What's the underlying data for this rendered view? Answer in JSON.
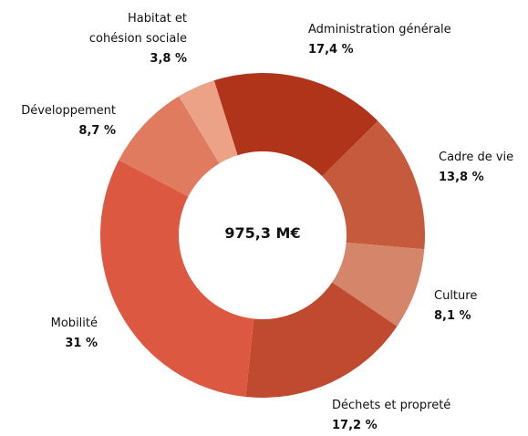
{
  "chart_data": {
    "type": "donut",
    "center_label": "975,3 M€",
    "categories": [
      "Administration générale",
      "Cadre de vie",
      "Culture",
      "Déchets et propreté",
      "Mobilité",
      "Développement",
      "Habitat et cohésion sociale"
    ],
    "values": [
      17.4,
      13.8,
      8.1,
      17.2,
      31,
      8.7,
      3.8
    ],
    "value_labels": [
      "17,4 %",
      "13,8 %",
      "8,1 %",
      "17,2 %",
      "31 %",
      "8,7 %",
      "3,8 %"
    ],
    "colors": [
      "#b0341a",
      "#c55a3c",
      "#d4856a",
      "#bf4a30",
      "#dc5840",
      "#e17b60",
      "#eba287"
    ]
  }
}
